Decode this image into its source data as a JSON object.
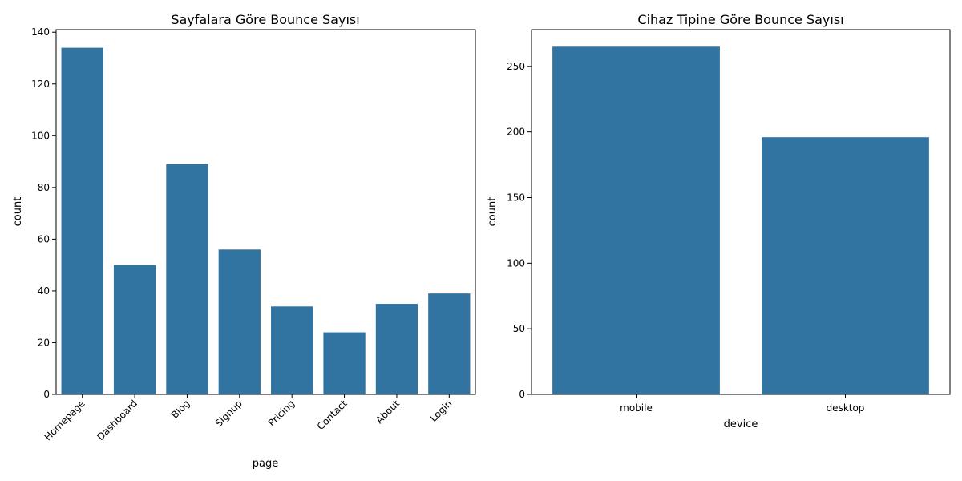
{
  "bar_color": "#3274a1",
  "chart_data": [
    {
      "type": "bar",
      "title": "Sayfalara Göre Bounce Sayısı",
      "xlabel": "page",
      "ylabel": "count",
      "categories": [
        "Homepage",
        "Dashboard",
        "Blog",
        "Signup",
        "Pricing",
        "Contact",
        "About",
        "Login"
      ],
      "values": [
        134,
        50,
        89,
        56,
        34,
        24,
        35,
        39
      ],
      "ylim": [
        0,
        141
      ],
      "yticks": [
        0,
        20,
        40,
        60,
        80,
        100,
        120,
        140
      ],
      "xtick_rotation": 45,
      "grid": false
    },
    {
      "type": "bar",
      "title": "Cihaz Tipine Göre Bounce Sayısı",
      "xlabel": "device",
      "ylabel": "count",
      "categories": [
        "mobile",
        "desktop"
      ],
      "values": [
        265,
        196
      ],
      "ylim": [
        0,
        278
      ],
      "yticks": [
        0,
        50,
        100,
        150,
        200,
        250
      ],
      "xtick_rotation": 0,
      "grid": false
    }
  ]
}
